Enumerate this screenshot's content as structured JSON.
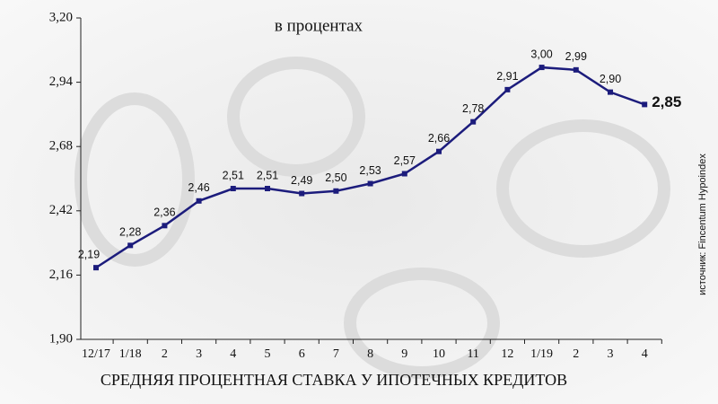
{
  "chart_data": {
    "type": "line",
    "title": "СРЕДНЯЯ ПРОЦЕНТНАЯ СТАВКА У ИПОТЕЧНЫХ КРЕДИТОВ",
    "subtitle": "в процентах",
    "source": "источник: Fincentum Hypoindex",
    "categories": [
      "12/17",
      "1/18",
      "2",
      "3",
      "4",
      "5",
      "6",
      "7",
      "8",
      "9",
      "10",
      "11",
      "12",
      "1/19",
      "2",
      "3",
      "4"
    ],
    "series": [
      {
        "name": "Средняя процентная ставка",
        "color": "#1c1c7c",
        "values": [
          2.19,
          2.28,
          2.36,
          2.46,
          2.51,
          2.51,
          2.49,
          2.5,
          2.53,
          2.57,
          2.66,
          2.78,
          2.91,
          3.0,
          2.99,
          2.9,
          2.85
        ],
        "value_labels": [
          "2,19",
          "2,28",
          "2,36",
          "2,46",
          "2,51",
          "2,51",
          "2,49",
          "2,50",
          "2,53",
          "2,57",
          "2,66",
          "2,78",
          "2,91",
          "3,00",
          "2,99",
          "2,90",
          "2,85"
        ]
      }
    ],
    "ylim": [
      1.9,
      3.2
    ],
    "yticks": [
      {
        "value": 1.9,
        "label": "1,90"
      },
      {
        "value": 2.16,
        "label": "2,16"
      },
      {
        "value": 2.42,
        "label": "2,42"
      },
      {
        "value": 2.68,
        "label": "2,68"
      },
      {
        "value": 2.94,
        "label": "2,94"
      },
      {
        "value": 3.2,
        "label": "3,20"
      }
    ],
    "grid": false
  }
}
